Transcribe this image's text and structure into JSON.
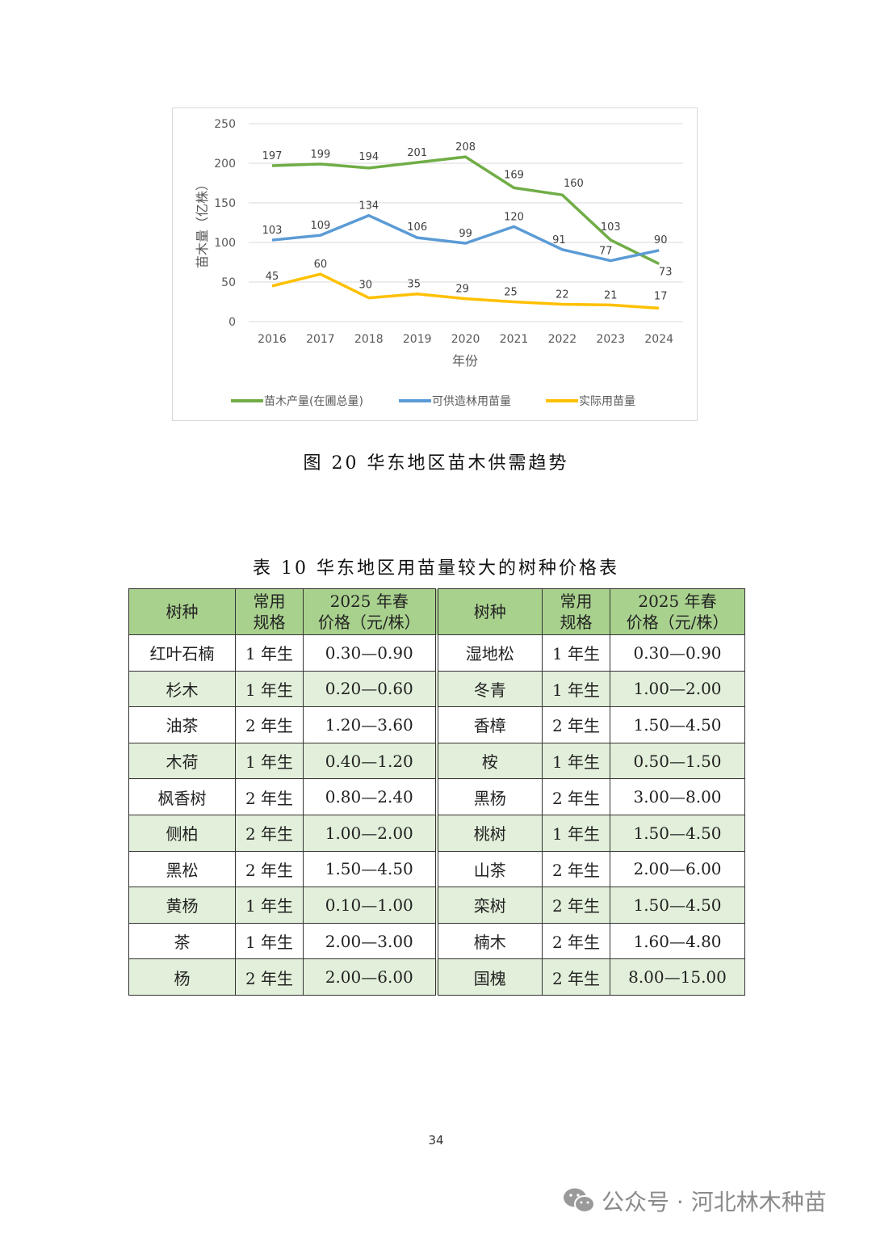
{
  "chart_data": {
    "type": "line",
    "categories": [
      "2016",
      "2017",
      "2018",
      "2019",
      "2020",
      "2021",
      "2022",
      "2023",
      "2024"
    ],
    "series": [
      {
        "name": "苗木产量(在圃总量)",
        "color": "#70ad47",
        "values": [
          197,
          199,
          194,
          201,
          208,
          169,
          160,
          103,
          73
        ]
      },
      {
        "name": "可供造林用苗量",
        "color": "#5b9bd5",
        "values": [
          103,
          109,
          134,
          106,
          99,
          120,
          91,
          77,
          90
        ]
      },
      {
        "name": "实际用苗量",
        "color": "#ffc000",
        "values": [
          45,
          60,
          30,
          35,
          29,
          25,
          22,
          21,
          17
        ]
      }
    ],
    "xlabel": "年份",
    "ylabel": "苗木量（亿株）",
    "ylim": [
      0,
      250
    ],
    "yticks": [
      "0",
      "50",
      "100",
      "150",
      "200",
      "250"
    ],
    "grid": true,
    "legend": "bottom",
    "data_labels": true
  },
  "figure_caption": "图 20  华东地区苗木供需趋势",
  "table_caption": "表 10  华东地区用苗量较大的树种价格表",
  "table": {
    "headers": [
      "树种",
      "常用规格",
      "2025 年春价格（元/株）",
      "树种",
      "常用规格",
      "2025 年春价格（元/株）"
    ],
    "header_lines": [
      [
        "树种"
      ],
      [
        "常用",
        "规格"
      ],
      [
        "2025 年春",
        "价格（元/株）"
      ],
      [
        "树种"
      ],
      [
        "常用",
        "规格"
      ],
      [
        "2025 年春",
        "价格（元/株）"
      ]
    ],
    "rows": [
      [
        "红叶石楠",
        "1 年生",
        "0.30—0.90",
        "湿地松",
        "1 年生",
        "0.30—0.90"
      ],
      [
        "杉木",
        "1 年生",
        "0.20—0.60",
        "冬青",
        "1 年生",
        "1.00—2.00"
      ],
      [
        "油茶",
        "2 年生",
        "1.20—3.60",
        "香樟",
        "2 年生",
        "1.50—4.50"
      ],
      [
        "木荷",
        "1 年生",
        "0.40—1.20",
        "桉",
        "1 年生",
        "0.50—1.50"
      ],
      [
        "枫香树",
        "2 年生",
        "0.80—2.40",
        "黑杨",
        "2 年生",
        "3.00—8.00"
      ],
      [
        "侧柏",
        "2 年生",
        "1.00—2.00",
        "桃树",
        "1 年生",
        "1.50—4.50"
      ],
      [
        "黑松",
        "2 年生",
        "1.50—4.50",
        "山茶",
        "2 年生",
        "2.00—6.00"
      ],
      [
        "黄杨",
        "1 年生",
        "0.10—1.00",
        "栾树",
        "2 年生",
        "1.50—4.50"
      ],
      [
        "茶",
        "1 年生",
        "2.00—3.00",
        "楠木",
        "2 年生",
        "1.60—4.80"
      ],
      [
        "杨",
        "2 年生",
        "2.00—6.00",
        "国槐",
        "2 年生",
        "8.00—15.00"
      ]
    ],
    "header_color": "#a9d18e",
    "alt_row_color": "#e2efda"
  },
  "page_number": "34",
  "watermark": {
    "icon": "wechat-icon",
    "text": "公众号 · 河北林木种苗"
  }
}
